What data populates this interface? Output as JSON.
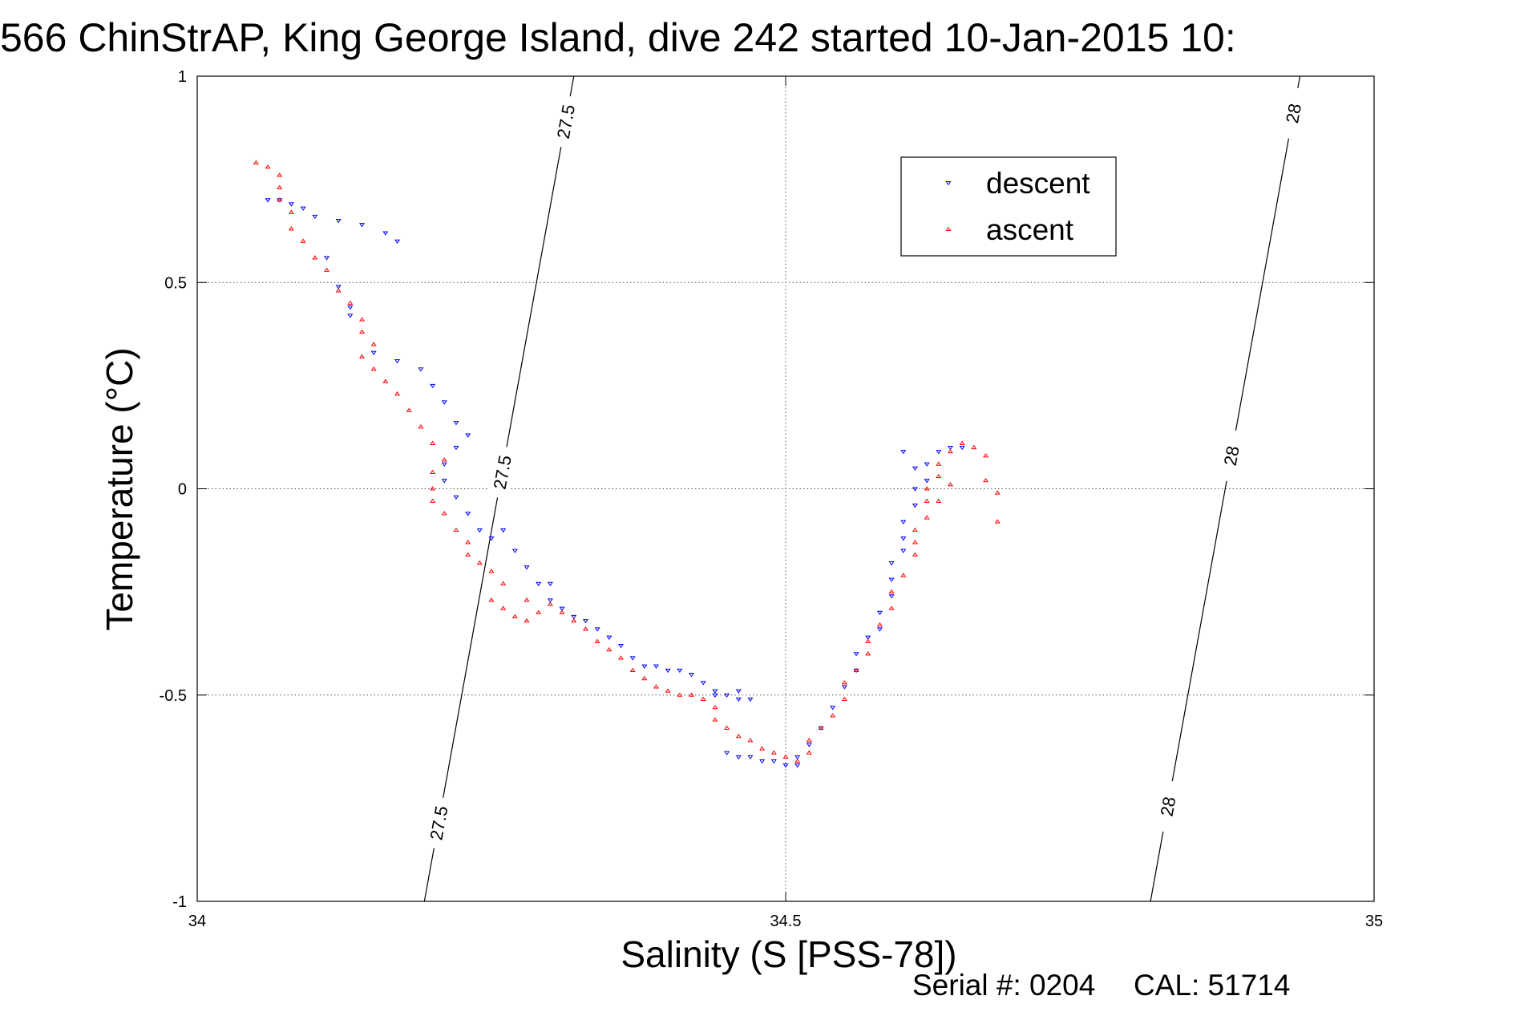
{
  "chart_data": {
    "type": "scatter",
    "title": "566 ChinStrAP, King George Island, dive 242 started 10-Jan-2015 10:",
    "xlabel": "Salinity (S [PSS-78])",
    "ylabel": "Temperature (°C)",
    "xlim": [
      34,
      35
    ],
    "ylim": [
      -1,
      1
    ],
    "x_ticks": [
      34,
      34.5,
      35
    ],
    "y_ticks": [
      -1,
      -0.5,
      0,
      0.5,
      1
    ],
    "x_tick_labels": [
      "34",
      "34.5",
      "35"
    ],
    "y_tick_labels": [
      "-1",
      "-0.5",
      "0",
      "0.5",
      "1"
    ],
    "grid": true,
    "legend_position": "top-right",
    "series": [
      {
        "name": "descent",
        "color": "#0000ff",
        "marker": "triangle-down",
        "points": [
          [
            34.06,
            0.7
          ],
          [
            34.07,
            0.7
          ],
          [
            34.08,
            0.69
          ],
          [
            34.09,
            0.68
          ],
          [
            34.1,
            0.66
          ],
          [
            34.12,
            0.65
          ],
          [
            34.14,
            0.64
          ],
          [
            34.16,
            0.62
          ],
          [
            34.17,
            0.6
          ],
          [
            34.11,
            0.56
          ],
          [
            34.12,
            0.49
          ],
          [
            34.13,
            0.44
          ],
          [
            34.13,
            0.42
          ],
          [
            34.15,
            0.33
          ],
          [
            34.17,
            0.31
          ],
          [
            34.19,
            0.29
          ],
          [
            34.2,
            0.25
          ],
          [
            34.21,
            0.21
          ],
          [
            34.22,
            0.16
          ],
          [
            34.23,
            0.13
          ],
          [
            34.22,
            0.1
          ],
          [
            34.21,
            0.06
          ],
          [
            34.21,
            0.02
          ],
          [
            34.22,
            -0.02
          ],
          [
            34.23,
            -0.06
          ],
          [
            34.24,
            -0.1
          ],
          [
            34.25,
            -0.12
          ],
          [
            34.26,
            -0.1
          ],
          [
            34.27,
            -0.15
          ],
          [
            34.28,
            -0.19
          ],
          [
            34.29,
            -0.23
          ],
          [
            34.3,
            -0.27
          ],
          [
            34.3,
            -0.23
          ],
          [
            34.31,
            -0.29
          ],
          [
            34.32,
            -0.31
          ],
          [
            34.33,
            -0.32
          ],
          [
            34.34,
            -0.34
          ],
          [
            34.35,
            -0.36
          ],
          [
            34.36,
            -0.38
          ],
          [
            34.37,
            -0.41
          ],
          [
            34.38,
            -0.43
          ],
          [
            34.39,
            -0.43
          ],
          [
            34.4,
            -0.44
          ],
          [
            34.41,
            -0.44
          ],
          [
            34.42,
            -0.45
          ],
          [
            34.43,
            -0.47
          ],
          [
            34.44,
            -0.49
          ],
          [
            34.44,
            -0.5
          ],
          [
            34.45,
            -0.5
          ],
          [
            34.46,
            -0.51
          ],
          [
            34.46,
            -0.49
          ],
          [
            34.47,
            -0.51
          ],
          [
            34.45,
            -0.64
          ],
          [
            34.46,
            -0.65
          ],
          [
            34.47,
            -0.65
          ],
          [
            34.48,
            -0.66
          ],
          [
            34.49,
            -0.66
          ],
          [
            34.5,
            -0.67
          ],
          [
            34.51,
            -0.67
          ],
          [
            34.51,
            -0.65
          ],
          [
            34.52,
            -0.62
          ],
          [
            34.53,
            -0.58
          ],
          [
            34.54,
            -0.53
          ],
          [
            34.55,
            -0.48
          ],
          [
            34.56,
            -0.44
          ],
          [
            34.56,
            -0.4
          ],
          [
            34.57,
            -0.36
          ],
          [
            34.58,
            -0.34
          ],
          [
            34.58,
            -0.3
          ],
          [
            34.59,
            -0.26
          ],
          [
            34.59,
            -0.22
          ],
          [
            34.59,
            -0.18
          ],
          [
            34.6,
            -0.15
          ],
          [
            34.6,
            -0.12
          ],
          [
            34.6,
            -0.08
          ],
          [
            34.61,
            -0.04
          ],
          [
            34.61,
            0.0
          ],
          [
            34.62,
            0.02
          ],
          [
            34.62,
            0.06
          ],
          [
            34.63,
            0.09
          ],
          [
            34.64,
            0.1
          ],
          [
            34.65,
            0.1
          ],
          [
            34.6,
            0.09
          ],
          [
            34.61,
            0.05
          ]
        ]
      },
      {
        "name": "ascent",
        "color": "#ff0000",
        "marker": "triangle-up",
        "points": [
          [
            34.05,
            0.79
          ],
          [
            34.06,
            0.78
          ],
          [
            34.07,
            0.76
          ],
          [
            34.07,
            0.73
          ],
          [
            34.07,
            0.7
          ],
          [
            34.08,
            0.67
          ],
          [
            34.08,
            0.63
          ],
          [
            34.09,
            0.6
          ],
          [
            34.1,
            0.56
          ],
          [
            34.11,
            0.53
          ],
          [
            34.12,
            0.48
          ],
          [
            34.13,
            0.45
          ],
          [
            34.14,
            0.41
          ],
          [
            34.14,
            0.38
          ],
          [
            34.15,
            0.35
          ],
          [
            34.14,
            0.32
          ],
          [
            34.15,
            0.29
          ],
          [
            34.16,
            0.26
          ],
          [
            34.17,
            0.23
          ],
          [
            34.18,
            0.19
          ],
          [
            34.19,
            0.15
          ],
          [
            34.2,
            0.11
          ],
          [
            34.21,
            0.07
          ],
          [
            34.2,
            0.04
          ],
          [
            34.2,
            0.0
          ],
          [
            34.2,
            -0.03
          ],
          [
            34.21,
            -0.06
          ],
          [
            34.22,
            -0.1
          ],
          [
            34.23,
            -0.13
          ],
          [
            34.23,
            -0.16
          ],
          [
            34.24,
            -0.18
          ],
          [
            34.25,
            -0.2
          ],
          [
            34.26,
            -0.23
          ],
          [
            34.25,
            -0.27
          ],
          [
            34.26,
            -0.29
          ],
          [
            34.27,
            -0.31
          ],
          [
            34.28,
            -0.32
          ],
          [
            34.29,
            -0.3
          ],
          [
            34.28,
            -0.27
          ],
          [
            34.3,
            -0.28
          ],
          [
            34.31,
            -0.3
          ],
          [
            34.32,
            -0.32
          ],
          [
            34.33,
            -0.34
          ],
          [
            34.34,
            -0.37
          ],
          [
            34.35,
            -0.39
          ],
          [
            34.36,
            -0.41
          ],
          [
            34.37,
            -0.44
          ],
          [
            34.38,
            -0.46
          ],
          [
            34.39,
            -0.48
          ],
          [
            34.4,
            -0.49
          ],
          [
            34.41,
            -0.5
          ],
          [
            34.42,
            -0.5
          ],
          [
            34.43,
            -0.51
          ],
          [
            34.44,
            -0.53
          ],
          [
            34.44,
            -0.56
          ],
          [
            34.45,
            -0.58
          ],
          [
            34.46,
            -0.6
          ],
          [
            34.47,
            -0.61
          ],
          [
            34.48,
            -0.63
          ],
          [
            34.49,
            -0.64
          ],
          [
            34.5,
            -0.65
          ],
          [
            34.51,
            -0.66
          ],
          [
            34.52,
            -0.64
          ],
          [
            34.52,
            -0.61
          ],
          [
            34.53,
            -0.58
          ],
          [
            34.54,
            -0.55
          ],
          [
            34.55,
            -0.51
          ],
          [
            34.55,
            -0.47
          ],
          [
            34.56,
            -0.44
          ],
          [
            34.57,
            -0.4
          ],
          [
            34.57,
            -0.37
          ],
          [
            34.58,
            -0.33
          ],
          [
            34.59,
            -0.29
          ],
          [
            34.59,
            -0.25
          ],
          [
            34.6,
            -0.21
          ],
          [
            34.61,
            -0.16
          ],
          [
            34.61,
            -0.13
          ],
          [
            34.61,
            -0.1
          ],
          [
            34.62,
            -0.07
          ],
          [
            34.62,
            -0.03
          ],
          [
            34.62,
            0.0
          ],
          [
            34.63,
            0.03
          ],
          [
            34.63,
            0.06
          ],
          [
            34.64,
            0.09
          ],
          [
            34.65,
            0.11
          ],
          [
            34.66,
            0.1
          ],
          [
            34.67,
            0.08
          ],
          [
            34.67,
            0.02
          ],
          [
            34.68,
            -0.01
          ],
          [
            34.68,
            -0.08
          ],
          [
            34.63,
            -0.03
          ],
          [
            34.64,
            0.01
          ]
        ]
      }
    ],
    "contours": [
      {
        "label": "27.5",
        "p1": [
          34.193,
          -1.0
        ],
        "p2": [
          34.32,
          1.0
        ],
        "label_at_y": [
          0.89,
          0.04,
          -0.81
        ]
      },
      {
        "label": "28",
        "p1": [
          34.81,
          -1.0
        ],
        "p2": [
          34.937,
          1.0
        ],
        "label_at_y": [
          0.91,
          0.08,
          -0.77
        ]
      }
    ],
    "footer": {
      "serial": "Serial #: 0204",
      "cal": "CAL: 51714"
    }
  }
}
